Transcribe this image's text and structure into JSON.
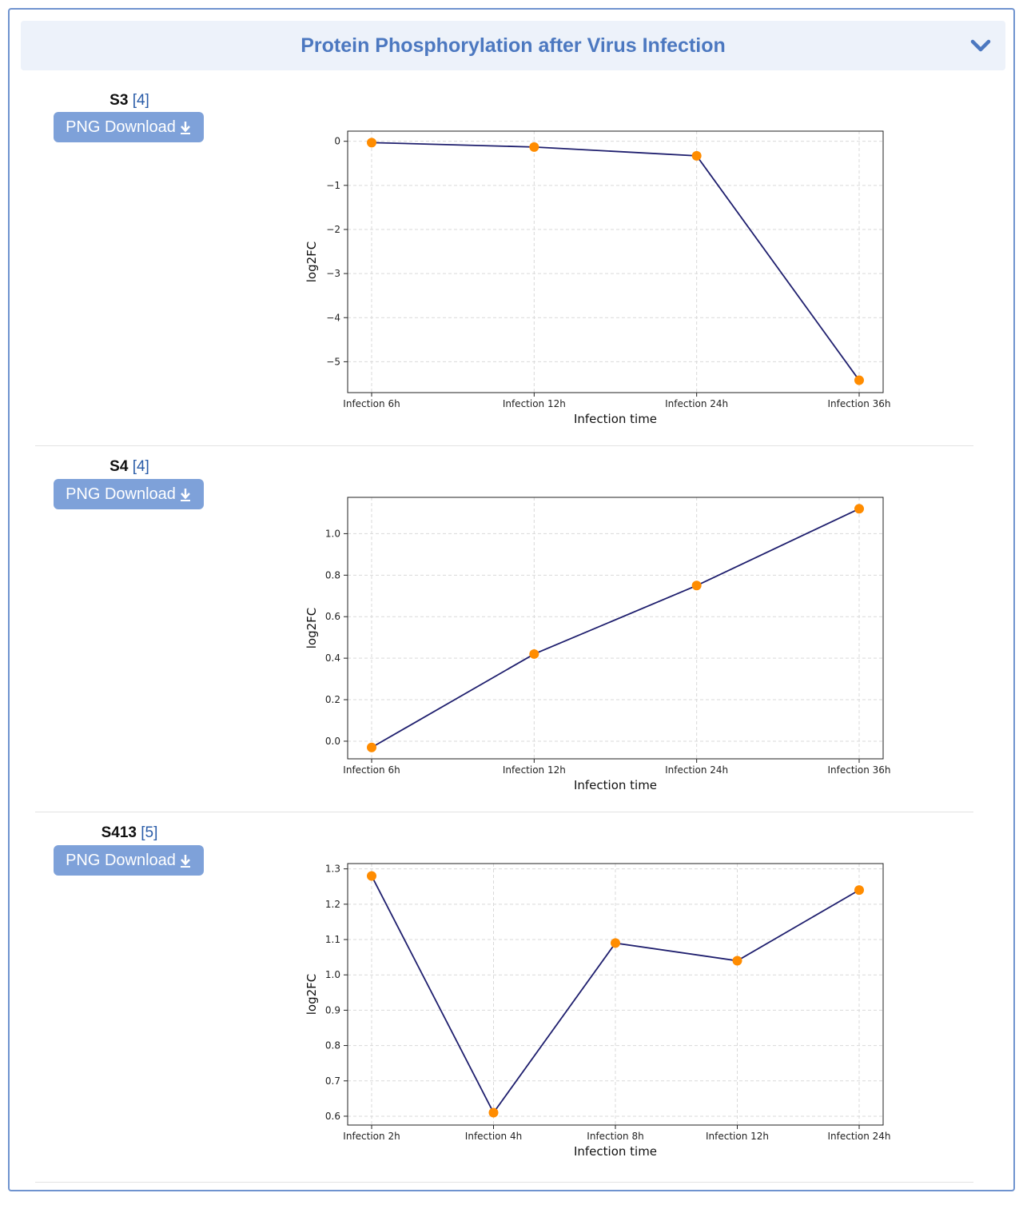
{
  "panel": {
    "title": "Protein Phosphorylation after Virus Infection"
  },
  "download_label": "PNG Download",
  "chart_data": [
    {
      "type": "line",
      "site": "S3",
      "count": "4",
      "categories": [
        "Infection 6h",
        "Infection 12h",
        "Infection 24h",
        "Infection 36h"
      ],
      "values": [
        -0.03,
        -0.13,
        -0.33,
        -5.42
      ],
      "xlabel": "Infection time",
      "ylabel": "log2FC",
      "ylim": [
        -5.7,
        0.23
      ],
      "yticks": [
        0,
        -1,
        -2,
        -3,
        -4,
        -5
      ],
      "grid": true,
      "line_color": "#1f1f6e",
      "marker_color": "#ff8c00"
    },
    {
      "type": "line",
      "site": "S4",
      "count": "4",
      "categories": [
        "Infection 6h",
        "Infection 12h",
        "Infection 24h",
        "Infection 36h"
      ],
      "values": [
        -0.03,
        0.42,
        0.75,
        1.12
      ],
      "xlabel": "Infection time",
      "ylabel": "log2FC",
      "ylim": [
        -0.085,
        1.175
      ],
      "yticks": [
        0.0,
        0.2,
        0.4,
        0.6,
        0.8,
        1.0
      ],
      "grid": true,
      "line_color": "#1f1f6e",
      "marker_color": "#ff8c00"
    },
    {
      "type": "line",
      "site": "S413",
      "count": "5",
      "categories": [
        "Infection 2h",
        "Infection 4h",
        "Infection 8h",
        "Infection 12h",
        "Infection 24h"
      ],
      "values": [
        1.28,
        0.61,
        1.09,
        1.04,
        1.24
      ],
      "xlabel": "Infection time",
      "ylabel": "log2FC",
      "ylim": [
        0.575,
        1.315
      ],
      "yticks": [
        0.6,
        0.7,
        0.8,
        0.9,
        1.0,
        1.1,
        1.2,
        1.3
      ],
      "grid": true,
      "line_color": "#1f1f6e",
      "marker_color": "#ff8c00"
    }
  ]
}
